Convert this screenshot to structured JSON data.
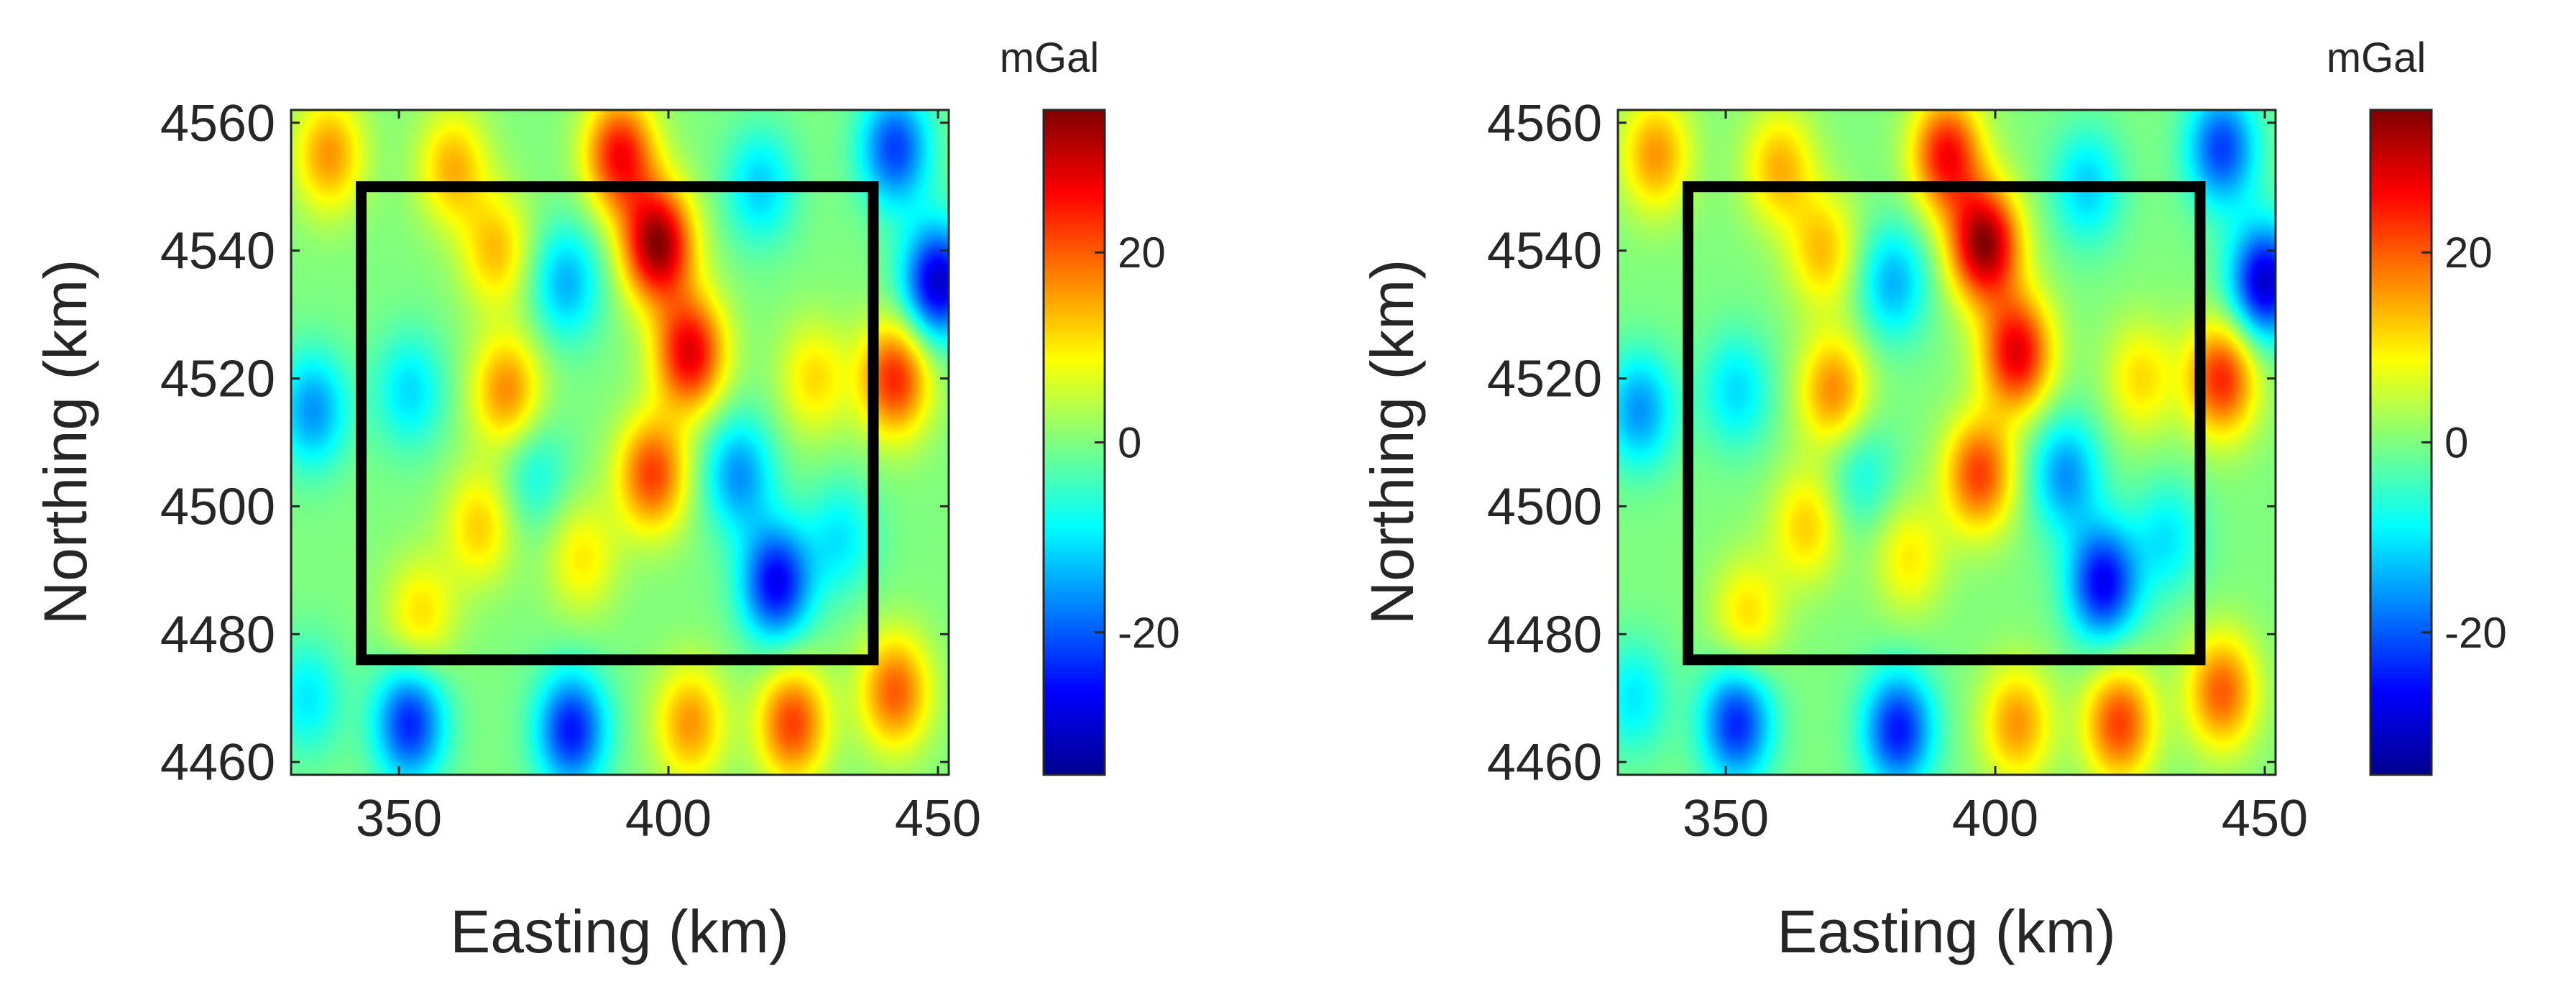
{
  "chart_data": [
    {
      "type": "heatmap",
      "title": "",
      "xlabel": "Easting (km)",
      "ylabel": "Northing (km)",
      "xlim": [
        330,
        452
      ],
      "ylim": [
        4458,
        4562
      ],
      "xticks": [
        350,
        400,
        450
      ],
      "yticks": [
        4460,
        4480,
        4500,
        4520,
        4540,
        4560
      ],
      "colorbar": {
        "title": "mGal",
        "clim": [
          -35,
          35
        ],
        "ticks": [
          -20,
          0,
          20
        ],
        "colormap": "jet"
      },
      "box": {
        "x": [
          343,
          438
        ],
        "y": [
          4476,
          4550
        ]
      },
      "anomalies": [
        {
          "x": 398,
          "y": 4541,
          "value": 34
        },
        {
          "x": 404,
          "y": 4524,
          "value": 28
        },
        {
          "x": 391,
          "y": 4555,
          "value": 26
        },
        {
          "x": 397,
          "y": 4505,
          "value": 22
        },
        {
          "x": 370,
          "y": 4518,
          "value": 17
        },
        {
          "x": 368,
          "y": 4540,
          "value": 13
        },
        {
          "x": 442,
          "y": 4520,
          "value": 24
        },
        {
          "x": 442,
          "y": 4471,
          "value": 20
        },
        {
          "x": 423,
          "y": 4466,
          "value": 22
        },
        {
          "x": 404,
          "y": 4466,
          "value": 16
        },
        {
          "x": 337,
          "y": 4555,
          "value": 16
        },
        {
          "x": 360,
          "y": 4553,
          "value": 14
        },
        {
          "x": 427,
          "y": 4520,
          "value": 11
        },
        {
          "x": 384,
          "y": 4492,
          "value": 10
        },
        {
          "x": 354,
          "y": 4483,
          "value": 11
        },
        {
          "x": 365,
          "y": 4497,
          "value": 12
        },
        {
          "x": 420,
          "y": 4488,
          "value": -27
        },
        {
          "x": 450,
          "y": 4535,
          "value": -30
        },
        {
          "x": 442,
          "y": 4556,
          "value": -22
        },
        {
          "x": 352,
          "y": 4466,
          "value": -24
        },
        {
          "x": 382,
          "y": 4465,
          "value": -25
        },
        {
          "x": 413,
          "y": 4505,
          "value": -16
        },
        {
          "x": 381,
          "y": 4535,
          "value": -14
        },
        {
          "x": 352,
          "y": 4518,
          "value": -11
        },
        {
          "x": 334,
          "y": 4515,
          "value": -16
        },
        {
          "x": 417,
          "y": 4550,
          "value": -12
        },
        {
          "x": 333,
          "y": 4470,
          "value": -10
        },
        {
          "x": 432,
          "y": 4495,
          "value": -10
        },
        {
          "x": 375,
          "y": 4505,
          "value": -8
        }
      ]
    },
    {
      "type": "heatmap",
      "title": "",
      "xlabel": "Easting (km)",
      "ylabel": "Northing (km)",
      "xlim": [
        330,
        452
      ],
      "ylim": [
        4458,
        4562
      ],
      "xticks": [
        350,
        400,
        450
      ],
      "yticks": [
        4460,
        4480,
        4500,
        4520,
        4540,
        4560
      ],
      "colorbar": {
        "title": "mGal",
        "clim": [
          -35,
          35
        ],
        "ticks": [
          -20,
          0,
          20
        ],
        "colormap": "jet"
      },
      "box": {
        "x": [
          343,
          438
        ],
        "y": [
          4476,
          4550
        ]
      },
      "anomalies": [
        {
          "x": 398,
          "y": 4541,
          "value": 34
        },
        {
          "x": 404,
          "y": 4524,
          "value": 28
        },
        {
          "x": 391,
          "y": 4555,
          "value": 26
        },
        {
          "x": 397,
          "y": 4505,
          "value": 22
        },
        {
          "x": 370,
          "y": 4518,
          "value": 17
        },
        {
          "x": 368,
          "y": 4540,
          "value": 13
        },
        {
          "x": 442,
          "y": 4520,
          "value": 24
        },
        {
          "x": 442,
          "y": 4471,
          "value": 20
        },
        {
          "x": 423,
          "y": 4466,
          "value": 22
        },
        {
          "x": 404,
          "y": 4466,
          "value": 16
        },
        {
          "x": 337,
          "y": 4555,
          "value": 16
        },
        {
          "x": 360,
          "y": 4553,
          "value": 14
        },
        {
          "x": 427,
          "y": 4520,
          "value": 11
        },
        {
          "x": 384,
          "y": 4492,
          "value": 10
        },
        {
          "x": 354,
          "y": 4483,
          "value": 11
        },
        {
          "x": 365,
          "y": 4497,
          "value": 12
        },
        {
          "x": 420,
          "y": 4488,
          "value": -27
        },
        {
          "x": 450,
          "y": 4535,
          "value": -30
        },
        {
          "x": 442,
          "y": 4556,
          "value": -22
        },
        {
          "x": 352,
          "y": 4466,
          "value": -24
        },
        {
          "x": 382,
          "y": 4465,
          "value": -25
        },
        {
          "x": 413,
          "y": 4505,
          "value": -16
        },
        {
          "x": 381,
          "y": 4535,
          "value": -14
        },
        {
          "x": 352,
          "y": 4518,
          "value": -11
        },
        {
          "x": 334,
          "y": 4515,
          "value": -16
        },
        {
          "x": 417,
          "y": 4550,
          "value": -12
        },
        {
          "x": 333,
          "y": 4470,
          "value": -10
        },
        {
          "x": 432,
          "y": 4495,
          "value": -10
        },
        {
          "x": 375,
          "y": 4505,
          "value": -8
        }
      ]
    }
  ]
}
